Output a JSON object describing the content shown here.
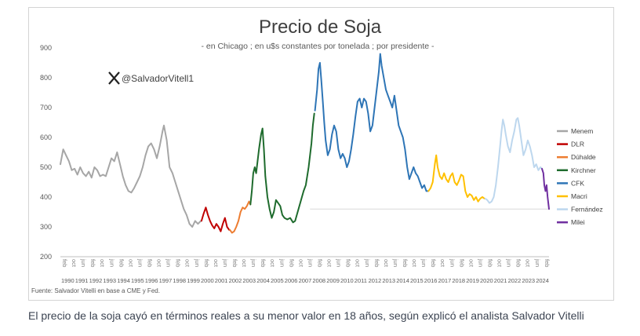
{
  "chart_data": {
    "type": "line",
    "title": "Precio de Soja",
    "subtitle": "- en Chicago ; en u$s constantes por tonelada ; por presidente -",
    "handle": "@SalvadorVitell1",
    "source": "Fuente: Salvador Vitelli en base a CME y Fed.",
    "xlabel": "",
    "ylabel": "",
    "ylim": [
      200,
      900
    ],
    "y_ticks": [
      "900",
      "800",
      "700",
      "600",
      "500",
      "400",
      "300",
      "200"
    ],
    "x_range": [
      1990.0,
      2024.45
    ],
    "x_month_labels": [
      "feb",
      "oct",
      "jun"
    ],
    "x_year_labels": [
      "1990",
      "1991",
      "1992",
      "1993",
      "1994",
      "1995",
      "1996",
      "1997",
      "1998",
      "1999",
      "2000",
      "2001",
      "2002",
      "2003",
      "2004",
      "2005",
      "2006",
      "2007",
      "2008",
      "2009",
      "2010",
      "2011",
      "2012",
      "2013",
      "2014",
      "2015",
      "2016",
      "2017",
      "2018",
      "2019",
      "2020",
      "2021",
      "2022",
      "2023",
      "2024"
    ],
    "reference_line": {
      "y": 360,
      "color": "#d9d9d9"
    },
    "grid": false,
    "legend_position": "right",
    "series": [
      {
        "name": "Menem",
        "color": "#a6a6a6",
        "points": [
          [
            1990.0,
            510
          ],
          [
            1990.2,
            560
          ],
          [
            1990.4,
            540
          ],
          [
            1990.6,
            520
          ],
          [
            1990.8,
            490
          ],
          [
            1991.0,
            495
          ],
          [
            1991.2,
            475
          ],
          [
            1991.4,
            500
          ],
          [
            1991.6,
            480
          ],
          [
            1991.8,
            470
          ],
          [
            1992.0,
            485
          ],
          [
            1992.2,
            465
          ],
          [
            1992.4,
            500
          ],
          [
            1992.6,
            490
          ],
          [
            1992.8,
            470
          ],
          [
            1993.0,
            475
          ],
          [
            1993.2,
            470
          ],
          [
            1993.4,
            500
          ],
          [
            1993.6,
            530
          ],
          [
            1993.8,
            520
          ],
          [
            1994.0,
            550
          ],
          [
            1994.2,
            510
          ],
          [
            1994.4,
            470
          ],
          [
            1994.6,
            440
          ],
          [
            1994.8,
            420
          ],
          [
            1995.0,
            415
          ],
          [
            1995.2,
            430
          ],
          [
            1995.4,
            450
          ],
          [
            1995.6,
            470
          ],
          [
            1995.8,
            500
          ],
          [
            1996.0,
            540
          ],
          [
            1996.2,
            570
          ],
          [
            1996.4,
            580
          ],
          [
            1996.6,
            560
          ],
          [
            1996.8,
            530
          ],
          [
            1997.0,
            570
          ],
          [
            1997.2,
            620
          ],
          [
            1997.3,
            640
          ],
          [
            1997.5,
            590
          ],
          [
            1997.7,
            500
          ],
          [
            1997.9,
            480
          ],
          [
            1998.1,
            450
          ],
          [
            1998.3,
            420
          ],
          [
            1998.5,
            390
          ],
          [
            1998.7,
            360
          ],
          [
            1998.9,
            340
          ],
          [
            1999.1,
            310
          ],
          [
            1999.3,
            300
          ],
          [
            1999.5,
            320
          ],
          [
            1999.7,
            310
          ],
          [
            1999.9,
            320
          ]
        ]
      },
      {
        "name": "DLR",
        "color": "#c00000",
        "points": [
          [
            1999.95,
            320
          ],
          [
            2000.1,
            345
          ],
          [
            2000.25,
            365
          ],
          [
            2000.4,
            340
          ],
          [
            2000.55,
            320
          ],
          [
            2000.7,
            305
          ],
          [
            2000.85,
            295
          ],
          [
            2001.0,
            310
          ],
          [
            2001.15,
            300
          ],
          [
            2001.3,
            285
          ],
          [
            2001.45,
            310
          ],
          [
            2001.6,
            330
          ],
          [
            2001.75,
            300
          ],
          [
            2001.9,
            290
          ]
        ]
      },
      {
        "name": "Dúhalde",
        "color": "#ed7d31",
        "points": [
          [
            2001.95,
            290
          ],
          [
            2002.1,
            280
          ],
          [
            2002.25,
            285
          ],
          [
            2002.4,
            300
          ],
          [
            2002.55,
            320
          ],
          [
            2002.7,
            350
          ],
          [
            2002.85,
            365
          ],
          [
            2003.0,
            360
          ],
          [
            2003.15,
            370
          ],
          [
            2003.3,
            385
          ],
          [
            2003.4,
            375
          ]
        ]
      },
      {
        "name": "Kirchner",
        "color": "#1e6b2d",
        "points": [
          [
            2003.4,
            375
          ],
          [
            2003.5,
            420
          ],
          [
            2003.6,
            480
          ],
          [
            2003.7,
            500
          ],
          [
            2003.8,
            480
          ],
          [
            2003.9,
            520
          ],
          [
            2004.0,
            560
          ],
          [
            2004.15,
            610
          ],
          [
            2004.25,
            630
          ],
          [
            2004.35,
            560
          ],
          [
            2004.45,
            470
          ],
          [
            2004.6,
            400
          ],
          [
            2004.75,
            360
          ],
          [
            2004.9,
            330
          ],
          [
            2005.05,
            350
          ],
          [
            2005.2,
            390
          ],
          [
            2005.35,
            380
          ],
          [
            2005.5,
            370
          ],
          [
            2005.65,
            340
          ],
          [
            2005.8,
            330
          ],
          [
            2006.0,
            325
          ],
          [
            2006.2,
            330
          ],
          [
            2006.4,
            315
          ],
          [
            2006.55,
            320
          ],
          [
            2006.7,
            345
          ],
          [
            2006.85,
            370
          ],
          [
            2007.0,
            395
          ],
          [
            2007.15,
            420
          ],
          [
            2007.3,
            440
          ],
          [
            2007.4,
            470
          ],
          [
            2007.5,
            500
          ],
          [
            2007.6,
            540
          ],
          [
            2007.7,
            580
          ],
          [
            2007.8,
            640
          ],
          [
            2007.9,
            680
          ]
        ]
      },
      {
        "name": "CFK",
        "color": "#2e75b6",
        "points": [
          [
            2007.95,
            690
          ],
          [
            2008.1,
            760
          ],
          [
            2008.2,
            830
          ],
          [
            2008.3,
            850
          ],
          [
            2008.4,
            790
          ],
          [
            2008.5,
            720
          ],
          [
            2008.6,
            650
          ],
          [
            2008.7,
            590
          ],
          [
            2008.85,
            540
          ],
          [
            2009.0,
            560
          ],
          [
            2009.15,
            610
          ],
          [
            2009.3,
            640
          ],
          [
            2009.45,
            620
          ],
          [
            2009.6,
            560
          ],
          [
            2009.75,
            530
          ],
          [
            2009.9,
            545
          ],
          [
            2010.05,
            530
          ],
          [
            2010.2,
            500
          ],
          [
            2010.35,
            520
          ],
          [
            2010.5,
            560
          ],
          [
            2010.65,
            610
          ],
          [
            2010.8,
            670
          ],
          [
            2010.95,
            720
          ],
          [
            2011.1,
            730
          ],
          [
            2011.25,
            700
          ],
          [
            2011.4,
            730
          ],
          [
            2011.55,
            720
          ],
          [
            2011.7,
            680
          ],
          [
            2011.85,
            620
          ],
          [
            2012.0,
            640
          ],
          [
            2012.15,
            700
          ],
          [
            2012.3,
            760
          ],
          [
            2012.45,
            820
          ],
          [
            2012.55,
            880
          ],
          [
            2012.65,
            840
          ],
          [
            2012.8,
            800
          ],
          [
            2012.95,
            760
          ],
          [
            2013.1,
            740
          ],
          [
            2013.25,
            720
          ],
          [
            2013.4,
            700
          ],
          [
            2013.55,
            740
          ],
          [
            2013.7,
            690
          ],
          [
            2013.85,
            640
          ],
          [
            2014.0,
            620
          ],
          [
            2014.15,
            600
          ],
          [
            2014.3,
            560
          ],
          [
            2014.45,
            500
          ],
          [
            2014.6,
            460
          ],
          [
            2014.75,
            480
          ],
          [
            2014.9,
            500
          ],
          [
            2015.05,
            480
          ],
          [
            2015.2,
            470
          ],
          [
            2015.35,
            450
          ],
          [
            2015.5,
            430
          ],
          [
            2015.65,
            440
          ],
          [
            2015.8,
            420
          ],
          [
            2015.9,
            420
          ]
        ]
      },
      {
        "name": "Macri",
        "color": "#ffc000",
        "points": [
          [
            2015.95,
            420
          ],
          [
            2016.1,
            430
          ],
          [
            2016.25,
            450
          ],
          [
            2016.4,
            510
          ],
          [
            2016.5,
            540
          ],
          [
            2016.6,
            500
          ],
          [
            2016.75,
            470
          ],
          [
            2016.9,
            460
          ],
          [
            2017.05,
            480
          ],
          [
            2017.2,
            460
          ],
          [
            2017.35,
            450
          ],
          [
            2017.5,
            470
          ],
          [
            2017.65,
            480
          ],
          [
            2017.8,
            450
          ],
          [
            2017.95,
            440
          ],
          [
            2018.1,
            455
          ],
          [
            2018.25,
            475
          ],
          [
            2018.4,
            470
          ],
          [
            2018.55,
            420
          ],
          [
            2018.7,
            400
          ],
          [
            2018.85,
            410
          ],
          [
            2019.0,
            405
          ],
          [
            2019.15,
            390
          ],
          [
            2019.3,
            400
          ],
          [
            2019.45,
            385
          ],
          [
            2019.6,
            395
          ],
          [
            2019.75,
            400
          ],
          [
            2019.9,
            395
          ]
        ]
      },
      {
        "name": "Fernández",
        "color": "#bdd7ee",
        "points": [
          [
            2019.95,
            395
          ],
          [
            2020.1,
            390
          ],
          [
            2020.25,
            380
          ],
          [
            2020.4,
            385
          ],
          [
            2020.55,
            400
          ],
          [
            2020.7,
            440
          ],
          [
            2020.85,
            500
          ],
          [
            2021.0,
            570
          ],
          [
            2021.1,
            620
          ],
          [
            2021.2,
            660
          ],
          [
            2021.3,
            640
          ],
          [
            2021.4,
            610
          ],
          [
            2021.55,
            570
          ],
          [
            2021.7,
            550
          ],
          [
            2021.85,
            590
          ],
          [
            2022.0,
            620
          ],
          [
            2022.15,
            660
          ],
          [
            2022.25,
            665
          ],
          [
            2022.35,
            640
          ],
          [
            2022.5,
            590
          ],
          [
            2022.65,
            540
          ],
          [
            2022.8,
            560
          ],
          [
            2022.95,
            590
          ],
          [
            2023.1,
            570
          ],
          [
            2023.25,
            540
          ],
          [
            2023.4,
            500
          ],
          [
            2023.55,
            510
          ],
          [
            2023.7,
            490
          ],
          [
            2023.85,
            500
          ],
          [
            2023.95,
            495
          ]
        ]
      },
      {
        "name": "Milei",
        "color": "#7030a0",
        "points": [
          [
            2023.95,
            495
          ],
          [
            2024.05,
            480
          ],
          [
            2024.12,
            440
          ],
          [
            2024.2,
            420
          ],
          [
            2024.28,
            440
          ],
          [
            2024.35,
            400
          ],
          [
            2024.45,
            360
          ]
        ]
      }
    ]
  },
  "caption": "El precio de la soja cayó en términos reales a su menor valor en 18 años, según explicó el analista Salvador Vitelli"
}
